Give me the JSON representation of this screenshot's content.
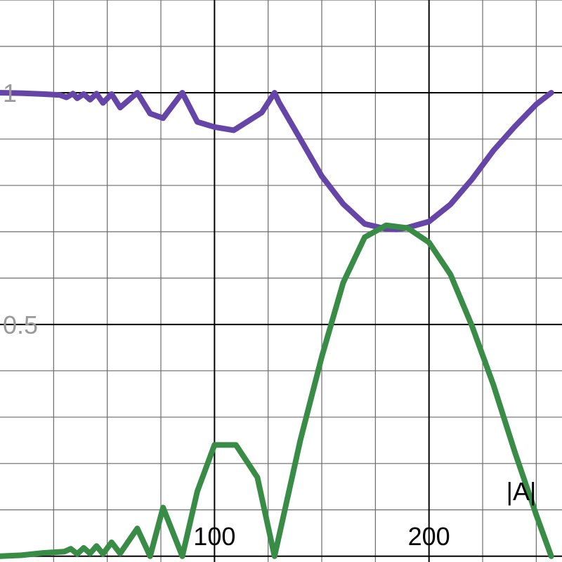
{
  "chart_data": {
    "type": "line",
    "xlim": [
      0,
      262
    ],
    "ylim": [
      -0.0125,
      1.2
    ],
    "grid": true,
    "x_major_ticks": [
      100,
      200
    ],
    "x_minor_step": 25,
    "y_major_ticks": [
      0,
      0.5,
      1
    ],
    "y_minor_step": 0.1,
    "x_tick_labels": [
      "100",
      "200"
    ],
    "y_tick_labels": [
      "0.5",
      "1"
    ],
    "x_tick_label_color": "#000000",
    "y_tick_label_color": "#999999",
    "axis_label": "|A|",
    "series": [
      {
        "color": "#6545a7",
        "points": [
          [
            0,
            1.0
          ],
          [
            10,
            0.999
          ],
          [
            20,
            0.997
          ],
          [
            28,
            0.995
          ],
          [
            31,
            0.99
          ],
          [
            34,
            0.998
          ],
          [
            36,
            0.988
          ],
          [
            39,
            0.997
          ],
          [
            42,
            0.985
          ],
          [
            45,
            0.998
          ],
          [
            48,
            0.978
          ],
          [
            52,
            0.997
          ],
          [
            56,
            0.968
          ],
          [
            64,
            1.0
          ],
          [
            70,
            0.955
          ],
          [
            76,
            0.945
          ],
          [
            85,
            1.0
          ],
          [
            92,
            0.937
          ],
          [
            100,
            0.926
          ],
          [
            109,
            0.919
          ],
          [
            122,
            0.957
          ],
          [
            128,
            1.0
          ],
          [
            130,
            0.98
          ],
          [
            140,
            0.9
          ],
          [
            150,
            0.82
          ],
          [
            160,
            0.76
          ],
          [
            170,
            0.717
          ],
          [
            180,
            0.706
          ],
          [
            185,
            0.705
          ],
          [
            190,
            0.709
          ],
          [
            200,
            0.722
          ],
          [
            210,
            0.759
          ],
          [
            220,
            0.813
          ],
          [
            230,
            0.875
          ],
          [
            240,
            0.927
          ],
          [
            250,
            0.975
          ],
          [
            257,
            1.0
          ]
        ]
      },
      {
        "color": "#388c46",
        "points": [
          [
            0,
            0.0
          ],
          [
            10,
            0.002
          ],
          [
            20,
            0.007
          ],
          [
            30,
            0.01
          ],
          [
            33,
            0.016
          ],
          [
            36,
            0.005
          ],
          [
            39,
            0.018
          ],
          [
            42,
            0.006
          ],
          [
            45,
            0.022
          ],
          [
            48,
            0.005
          ],
          [
            52,
            0.03
          ],
          [
            56,
            0.006
          ],
          [
            64,
            0.06
          ],
          [
            70,
            0.0
          ],
          [
            76,
            0.105
          ],
          [
            85,
            0.0
          ],
          [
            92,
            0.14
          ],
          [
            100,
            0.24
          ],
          [
            110,
            0.24
          ],
          [
            120,
            0.17
          ],
          [
            128,
            0.0
          ],
          [
            140,
            0.25
          ],
          [
            150,
            0.43
          ],
          [
            160,
            0.59
          ],
          [
            170,
            0.688
          ],
          [
            180,
            0.714
          ],
          [
            190,
            0.708
          ],
          [
            200,
            0.677
          ],
          [
            210,
            0.608
          ],
          [
            220,
            0.497
          ],
          [
            230,
            0.37
          ],
          [
            240,
            0.225
          ],
          [
            250,
            0.089
          ],
          [
            257,
            0.0
          ]
        ]
      }
    ]
  }
}
